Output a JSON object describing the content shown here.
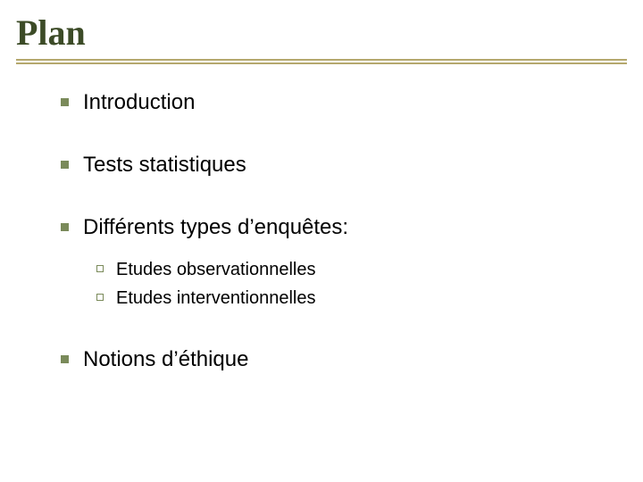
{
  "slide": {
    "title": "Plan",
    "title_color": "#3c4b27",
    "title_fontsize": 40,
    "divider_color": "#b5a86e",
    "background_color": "#ffffff",
    "bullet_color": "#7a8a5a",
    "text_color": "#000000",
    "l1_fontsize": 24,
    "l2_fontsize": 20,
    "items": [
      {
        "label": "Introduction"
      },
      {
        "label": "Tests statistiques"
      },
      {
        "label": "Différents types d’enquêtes:",
        "sub": [
          {
            "label": "Etudes observationnelles"
          },
          {
            "label": "Etudes interventionnelles"
          }
        ]
      },
      {
        "label": "Notions d’éthique"
      }
    ]
  }
}
